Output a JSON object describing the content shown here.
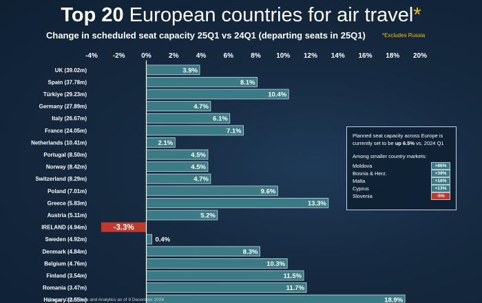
{
  "header": {
    "title_bold": "Top 20",
    "title_rest": " European countries for air travel",
    "title_asterisk": "*",
    "subtitle": "Change in scheduled seat capacity 25Q1 vs 24Q1 (departing seats in 25Q1)",
    "excludes_note": "*Excludes Russia"
  },
  "chart_data": {
    "type": "bar",
    "orientation": "horizontal",
    "categories": [
      "UK (39.02m)",
      "Spain (37.78m)",
      "Türkiye (29.23m)",
      "Germany (27.89m)",
      "Italy (26.67m)",
      "France (24.05m)",
      "Netherlands (10.41m)",
      "Portugal (8.50m)",
      "Norway (8.42m)",
      "Switzerland (8.29m)",
      "Poland (7.01m)",
      "Greece (5.83m)",
      "Austria (5.11m)",
      "IRELAND (4.94m)",
      "Sweden (4.92m)",
      "Denmark (4.84m)",
      "Belgium (4.76m)",
      "Finland (3.54m)",
      "Romania (3.47m)",
      "Hungary (2.55m)"
    ],
    "values": [
      3.9,
      8.1,
      10.4,
      4.7,
      6.1,
      7.1,
      2.1,
      4.5,
      4.5,
      4.7,
      9.6,
      13.3,
      5.2,
      -3.3,
      0.4,
      8.3,
      10.3,
      11.5,
      11.7,
      18.9
    ],
    "value_labels": [
      "3.9%",
      "8.1%",
      "10.4%",
      "4.7%",
      "6.1%",
      "7.1%",
      "2.1%",
      "4.5%",
      "4.5%",
      "4.7%",
      "9.6%",
      "13.3%",
      "5.2%",
      "-3.3%",
      "0.4%",
      "8.3%",
      "10.3%",
      "11.5%",
      "11.7%",
      "18.9%"
    ],
    "xlim": [
      -4,
      20
    ],
    "xticks": [
      -4,
      -2,
      0,
      2,
      4,
      6,
      8,
      10,
      12,
      14,
      16,
      18,
      20
    ],
    "xtick_labels": [
      "-4%",
      "-2%",
      "0%",
      "2%",
      "4%",
      "6%",
      "8%",
      "10%",
      "12%",
      "14%",
      "16%",
      "18%",
      "20%"
    ],
    "highlight_category": "IRELAND (4.94m)",
    "grid": false,
    "colors": {
      "bar": "#3a7b85",
      "bar_border": "#c8d4dc",
      "negative_bar": "#c0392b",
      "axis": "#ffffff",
      "accent": "#f2c200"
    }
  },
  "infobox": {
    "intro_part1": "Planned seat capacity across Europe is currently set to be ",
    "intro_bold": "up 6.5%",
    "intro_part2": " vs. 2024 Q1",
    "among": "Among smaller country markets:",
    "markets": [
      {
        "name": "Moldova",
        "value": "+86%",
        "negative": false
      },
      {
        "name": "Bosnia & Herz.",
        "value": "+39%",
        "negative": false
      },
      {
        "name": "Malta",
        "value": "+16%",
        "negative": false
      },
      {
        "name": "Cyprus",
        "value": "+13%",
        "negative": false
      },
      {
        "name": "Slovenia",
        "value": "-5%",
        "negative": true
      }
    ]
  },
  "footer": {
    "source": "Source: Cirium Data and Analytics as of 9 December 2024"
  }
}
